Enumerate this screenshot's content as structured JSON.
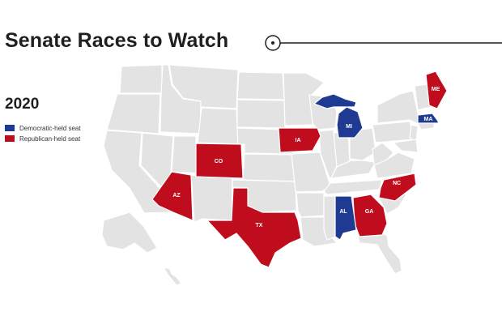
{
  "title": "Senate Races to Watch",
  "year": "2020",
  "legend": [
    {
      "label": "Democratic-held seat",
      "color": "#1f3a93"
    },
    {
      "label": "Republican-held seat",
      "color": "#c00d1e"
    }
  ],
  "colors": {
    "base": "#e3e3e3",
    "border": "#ffffff",
    "democratic": "#1f3a93",
    "republican": "#c00d1e",
    "title": "#1f1f1f"
  },
  "states": [
    {
      "abbr": "ME",
      "party": "republican"
    },
    {
      "abbr": "MA",
      "party": "democratic"
    },
    {
      "abbr": "MI",
      "party": "democratic"
    },
    {
      "abbr": "IA",
      "party": "republican"
    },
    {
      "abbr": "CO",
      "party": "republican"
    },
    {
      "abbr": "AZ",
      "party": "republican"
    },
    {
      "abbr": "TX",
      "party": "republican"
    },
    {
      "abbr": "NC",
      "party": "republican"
    },
    {
      "abbr": "GA",
      "party": "republican"
    },
    {
      "abbr": "AL",
      "party": "democratic"
    }
  ]
}
